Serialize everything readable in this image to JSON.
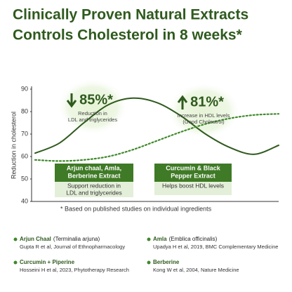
{
  "headline": [
    "Clinically Proven Natural Extracts",
    "Controls Cholesterol in 8 weeks*"
  ],
  "chart_data": {
    "type": "line",
    "ylabel": "Reduction in cholesterol",
    "ylim": [
      40,
      90
    ],
    "yticks": [
      40,
      50,
      60,
      70,
      80,
      90
    ],
    "x": [
      0,
      1,
      2,
      3,
      4,
      5,
      6,
      7,
      8,
      9,
      10
    ],
    "xlim": [
      0,
      10
    ],
    "series": [
      {
        "color": "#2f5a1e",
        "style": "solid",
        "values": [
          61.5,
          66,
          75,
          83,
          86,
          84,
          78,
          70,
          64,
          61,
          65
        ]
      },
      {
        "color": "#3f8a2a",
        "style": "dotted",
        "values": [
          58.5,
          58,
          58.5,
          60,
          63,
          67,
          71,
          74.5,
          77,
          78.5,
          79
        ]
      }
    ]
  },
  "callouts": [
    {
      "value": "85%*",
      "text": [
        "Reduction in",
        "LDL and triglycerides"
      ]
    },
    {
      "value": "81%*",
      "text": [
        "Increase in HDL levels",
        "(Good Cholestrol)"
      ]
    }
  ],
  "boxes": [
    {
      "title": [
        "Arjun chaal, Amla,",
        "Berberine Extract"
      ],
      "text": [
        "Support reduction in",
        "LDL and triglycerides"
      ]
    },
    {
      "title": [
        "Curcumin & Black",
        "Pepper Extract"
      ],
      "text": [
        "Helps boost HDL levels"
      ]
    }
  ],
  "footnote": "* Based on published studies on individual ingredients",
  "ingredients": [
    {
      "name": "Arjun Chaal",
      "latin": "(Terminalia arjuna)",
      "ref": "Gupta R et al, Journal of Ethnopharmacology"
    },
    {
      "name": "Amla",
      "latin": "(Emblica officinalis)",
      "ref": "Upadya H et al, 2019, BMC Complementary Medicine"
    },
    {
      "name": "Curcumin + Piperine",
      "latin": "",
      "ref": "Hosseini H et al, 2023, Phytotherapy Research"
    },
    {
      "name": "Berberine",
      "latin": "",
      "ref": "Kong W et al, 2004, Nature Medicine"
    }
  ]
}
